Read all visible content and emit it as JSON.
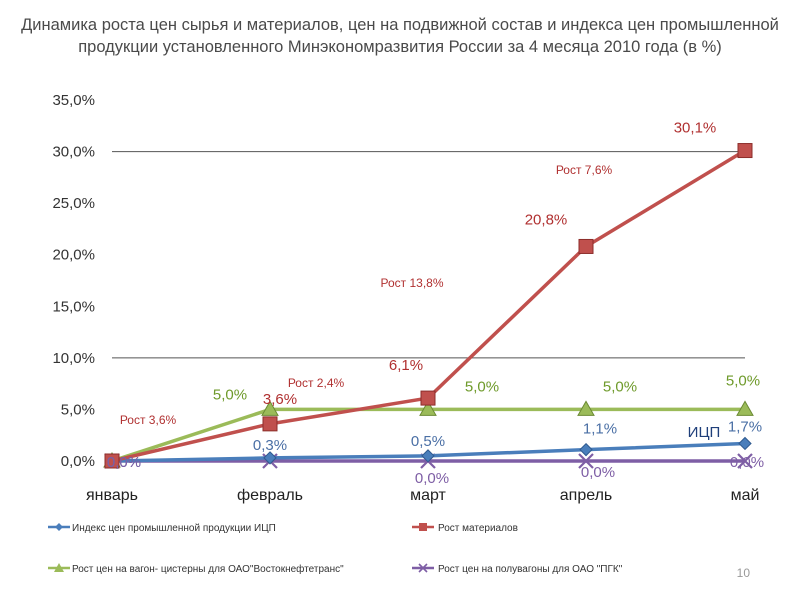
{
  "title": "Динамика роста цен сырья и материалов, цен на подвижной состав и индекса цен промышленной продукции установленного Минэкономразвития России  за 4 месяца 2010 года (в %)",
  "page_number": "10",
  "chart_data": {
    "type": "line",
    "categories": [
      "январь",
      "февраль",
      "март",
      "апрель",
      "май"
    ],
    "ylim": [
      0,
      35
    ],
    "yticks": [
      "0,0%",
      "5,0%",
      "10,0%",
      "15,0%",
      "20,0%",
      "25,0%",
      "30,0%",
      "35,0%"
    ],
    "grid_values": [
      10,
      30
    ],
    "legend_position": "bottom",
    "series": [
      {
        "name": "Индекс цен промышленной продукции ИЦП",
        "color": "#4a7ebb",
        "marker": "diamond",
        "values": [
          0,
          0.3,
          0.5,
          1.1,
          1.7
        ],
        "labels": [
          "0,0%",
          "0,3%",
          "0,5%",
          "1,1%",
          "1,7%"
        ],
        "label_color": "#4a6fa5"
      },
      {
        "name": "Рост материалов",
        "color": "#c0504d",
        "marker": "square",
        "values": [
          0,
          3.6,
          6.1,
          20.8,
          30.1
        ],
        "labels": [
          "",
          "3,6%",
          "6,1%",
          "20,8%",
          "30,1%"
        ],
        "label_color": "#b03030"
      },
      {
        "name": "Рост цен на вагон- цистерны для ОАО\"Востокнефтетранс\"",
        "color": "#9bbb59",
        "marker": "triangle",
        "values": [
          0,
          5,
          5,
          5,
          5
        ],
        "labels": [
          "",
          "5,0%",
          "5,0%",
          "5,0%",
          "5,0%"
        ],
        "label_color": "#6e9a2a"
      },
      {
        "name": "Рост цен на полувагоны для ОАО \"ПГК\"",
        "color": "#7e5ea5",
        "marker": "x",
        "values": [
          0,
          0,
          0,
          0,
          0
        ],
        "labels": [
          "0,0%",
          "",
          "0,0%",
          "0,0%",
          "0,0%"
        ],
        "label_color": "#7e5ea5"
      }
    ],
    "annotations": [
      {
        "text": "Рост  3,6%"
      },
      {
        "text": "Рост  2,4%"
      },
      {
        "text": "Рост  13,8%"
      },
      {
        "text": "Рост  7,6%"
      },
      {
        "text": "ИЦП"
      }
    ]
  }
}
